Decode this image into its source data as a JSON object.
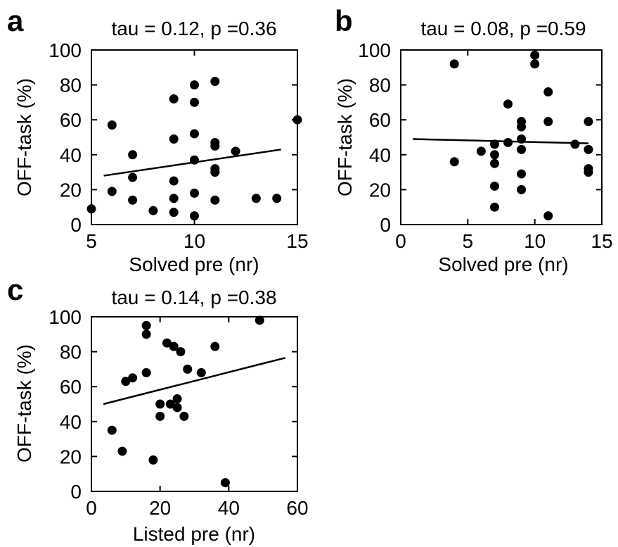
{
  "chart_data": [
    {
      "panel": "a",
      "type": "scatter",
      "title": "tau = 0.12, p =0.36",
      "xlabel": "Solved pre (nr)",
      "ylabel": "OFF-task (%)",
      "xlim": [
        5,
        15
      ],
      "ylim": [
        0,
        100
      ],
      "xticks": [
        5,
        10,
        15
      ],
      "yticks": [
        0,
        20,
        40,
        60,
        80,
        100
      ],
      "grid": false,
      "color": "#000000",
      "points": [
        [
          5,
          9
        ],
        [
          6,
          57
        ],
        [
          6,
          19
        ],
        [
          7,
          40
        ],
        [
          7,
          27
        ],
        [
          7,
          14
        ],
        [
          8,
          8
        ],
        [
          9,
          72
        ],
        [
          9,
          49
        ],
        [
          9,
          25
        ],
        [
          9,
          15
        ],
        [
          9,
          7
        ],
        [
          10,
          80
        ],
        [
          10,
          70
        ],
        [
          10,
          52
        ],
        [
          10,
          37
        ],
        [
          10,
          18
        ],
        [
          10,
          5
        ],
        [
          11,
          82
        ],
        [
          11,
          47
        ],
        [
          11,
          45
        ],
        [
          11,
          32
        ],
        [
          11,
          30
        ],
        [
          11,
          14
        ],
        [
          12,
          42
        ],
        [
          13,
          15
        ],
        [
          14,
          15
        ],
        [
          15,
          60
        ]
      ],
      "fit_line": {
        "x": [
          5.6,
          14.2
        ],
        "y": [
          28,
          43
        ]
      }
    },
    {
      "panel": "b",
      "type": "scatter",
      "title": "tau = 0.08, p =0.59",
      "xlabel": "Solved pre (nr)",
      "ylabel": "OFF-task (%)",
      "xlim": [
        0,
        15
      ],
      "ylim": [
        0,
        100
      ],
      "xticks": [
        0,
        5,
        10,
        15
      ],
      "yticks": [
        0,
        20,
        40,
        60,
        80,
        100
      ],
      "grid": false,
      "color": "#000000",
      "points": [
        [
          4,
          92
        ],
        [
          4,
          36
        ],
        [
          6,
          42
        ],
        [
          7,
          46
        ],
        [
          7,
          40
        ],
        [
          7,
          35
        ],
        [
          7,
          22
        ],
        [
          7,
          10
        ],
        [
          8,
          69
        ],
        [
          8,
          47
        ],
        [
          9,
          59
        ],
        [
          9,
          56
        ],
        [
          9,
          49
        ],
        [
          9,
          43
        ],
        [
          9,
          29
        ],
        [
          9,
          20
        ],
        [
          10,
          97
        ],
        [
          10,
          92
        ],
        [
          11,
          76
        ],
        [
          11,
          59
        ],
        [
          11,
          5
        ],
        [
          13,
          46
        ],
        [
          14,
          59
        ],
        [
          14,
          43
        ],
        [
          14,
          32
        ],
        [
          14,
          30
        ]
      ],
      "fit_line": {
        "x": [
          0.9,
          14.0
        ],
        "y": [
          49,
          46.5
        ]
      }
    },
    {
      "panel": "c",
      "type": "scatter",
      "title": "tau = 0.14, p =0.38",
      "xlabel": "Listed pre (nr)",
      "ylabel": "OFF-task (%)",
      "xlim": [
        0,
        60
      ],
      "ylim": [
        0,
        100
      ],
      "xticks": [
        0,
        20,
        40,
        60
      ],
      "yticks": [
        0,
        20,
        40,
        60,
        80,
        100
      ],
      "grid": false,
      "color": "#000000",
      "points": [
        [
          6,
          35
        ],
        [
          9,
          23
        ],
        [
          10,
          63
        ],
        [
          12,
          65
        ],
        [
          16,
          95
        ],
        [
          16,
          90
        ],
        [
          16,
          68
        ],
        [
          18,
          18
        ],
        [
          20,
          50
        ],
        [
          20,
          43
        ],
        [
          22,
          85
        ],
        [
          23,
          50
        ],
        [
          24,
          83
        ],
        [
          25,
          53
        ],
        [
          25,
          48
        ],
        [
          26,
          80
        ],
        [
          27,
          43
        ],
        [
          28,
          70
        ],
        [
          32,
          68
        ],
        [
          36,
          83
        ],
        [
          39,
          5
        ],
        [
          49,
          98
        ]
      ],
      "fit_line": {
        "x": [
          3.5,
          56.5
        ],
        "y": [
          50,
          76.5
        ]
      }
    }
  ]
}
